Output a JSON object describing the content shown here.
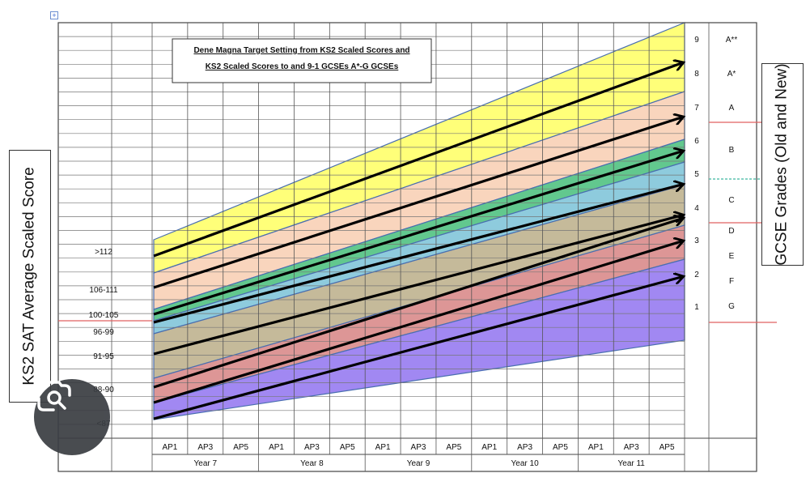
{
  "chart_data": {
    "type": "area",
    "title_lines": [
      "Dene Magna Target Setting from KS2 Scaled Scores and",
      "KS2 Scaled Scores to and 9-1 GCSEs A*-G GCSEs"
    ],
    "ylabel": "KS2 SAT Average Scaled Score",
    "right_label": "GCSE Grades (Old and New)",
    "assessment_points": [
      "AP1",
      "AP3",
      "AP5",
      "AP1",
      "AP3",
      "AP5",
      "AP1",
      "AP3",
      "AP5",
      "AP1",
      "AP3",
      "AP5",
      "AP1",
      "AP3",
      "AP5"
    ],
    "years": [
      "Year 7",
      "Year 8",
      "Year 9",
      "Year 10",
      "Year 11"
    ],
    "ks2_bands": [
      ">112",
      "106-111",
      "100-105",
      "96-99",
      "91-95",
      "88-90",
      "<87"
    ],
    "gcse_new_grades": [
      "9",
      "8",
      "7",
      "6",
      "5",
      "4",
      "3",
      "2",
      "1"
    ],
    "gcse_old_grades": [
      "A**",
      "A*",
      "A",
      "B",
      "C",
      "D",
      "E",
      "F",
      "G"
    ],
    "bands": [
      {
        "color": "#ffff66"
      },
      {
        "color": "#f8cfb4"
      },
      {
        "color": "#4cc07e"
      },
      {
        "color": "#7ec4d8"
      },
      {
        "color": "#bdb08c"
      },
      {
        "color": "#d88888"
      },
      {
        "color": "#9478f0"
      }
    ],
    "arrows": [
      {
        "start_band": ">112",
        "end_grade": "8"
      },
      {
        "start_band": "106-111",
        "end_grade": "7"
      },
      {
        "start_band": "100-105",
        "end_grade": "6"
      },
      {
        "start_band": "100-105",
        "end_grade": "5"
      },
      {
        "start_band": "96-99",
        "end_grade": "4"
      },
      {
        "start_band": "91-95",
        "end_grade": "4"
      },
      {
        "start_band": "88-90",
        "end_grade": "3"
      },
      {
        "start_band": "<87",
        "end_grade": "2"
      }
    ],
    "colors": {
      "grid": "#444444",
      "boundary_red": "#e06060",
      "boundary_dotted": "#3fb8a0",
      "band_outline": "#4a6fb0"
    }
  }
}
